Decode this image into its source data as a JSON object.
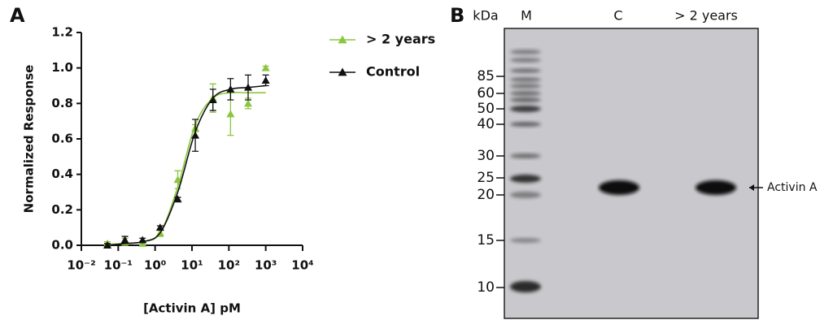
{
  "panel_labels": [
    "A",
    "B"
  ],
  "chart_data": {
    "type": "scatter",
    "xlabel": "[Activin A] pM",
    "ylabel": "Normalized Response",
    "log_x": true,
    "x": [
      0.0508,
      0.152,
      0.457,
      1.37,
      4.12,
      12.3,
      37,
      111,
      333,
      1000
    ],
    "xlim": [
      0.01,
      10000
    ],
    "xticks": [
      {
        "value": 0.01,
        "label": "10⁻²"
      },
      {
        "value": 0.1,
        "label": "10⁻¹"
      },
      {
        "value": 1,
        "label": "10⁰"
      },
      {
        "value": 10,
        "label": "10¹"
      },
      {
        "value": 100,
        "label": "10²"
      },
      {
        "value": 1000,
        "label": "10³"
      },
      {
        "value": 10000,
        "label": "10⁴"
      }
    ],
    "ylim": [
      0,
      1.2
    ],
    "yticks": [
      {
        "value": 0,
        "label": "0.0"
      },
      0.2,
      0.4,
      0.6,
      0.8,
      {
        "value": 1,
        "label": "1.0"
      },
      1.2
    ],
    "series": [
      {
        "name": "> 2 years",
        "color": "#8cc63f",
        "values": [
          0.01,
          0.02,
          0.01,
          0.07,
          0.37,
          0.66,
          0.83,
          0.74,
          0.8,
          1.0
        ],
        "errors": [
          0.01,
          0.02,
          0.01,
          0.02,
          0.05,
          0.02,
          0.08,
          0.12,
          0.03,
          0.01
        ],
        "fit": [
          0.005,
          0.01,
          0.02,
          0.07,
          0.33,
          0.68,
          0.83,
          0.86,
          0.86,
          0.86
        ]
      },
      {
        "name": "Control",
        "color": "#111111",
        "values": [
          0.0,
          0.03,
          0.03,
          0.1,
          0.26,
          0.62,
          0.82,
          0.88,
          0.89,
          0.93
        ],
        "errors": [
          0.01,
          0.02,
          0.01,
          0.01,
          0.01,
          0.09,
          0.06,
          0.06,
          0.07,
          0.03
        ],
        "fit": [
          0.0,
          0.01,
          0.02,
          0.07,
          0.3,
          0.64,
          0.83,
          0.88,
          0.89,
          0.9
        ]
      }
    ]
  },
  "gel": {
    "header": [
      "kDa",
      "M",
      "C",
      "> 2 years"
    ],
    "markers": [
      "85",
      "60",
      "50",
      "40",
      "30",
      "25",
      "20",
      "15",
      "10"
    ],
    "band_label": "Activin A"
  }
}
